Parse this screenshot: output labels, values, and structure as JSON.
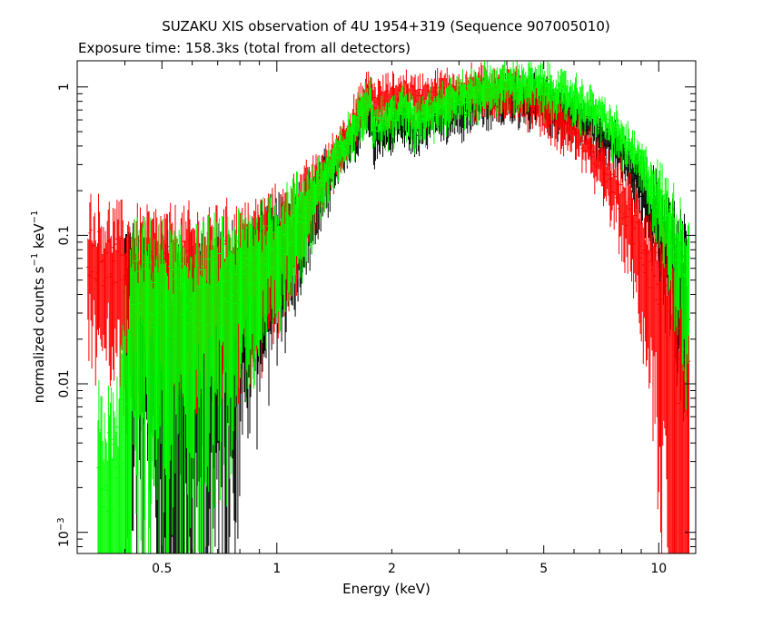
{
  "chart_data": {
    "type": "scatter",
    "title": "SUZAKU XIS observation of 4U 1954+319 (Sequence 907005010)",
    "subtitle": "Exposure time: 158.3ks (total from all detectors)",
    "xlabel": "Energy (keV)",
    "ylabel": {
      "text_a": "normalized counts s",
      "sup_a": "−1",
      "text_b": " keV",
      "sup_b": "−1"
    },
    "xscale": "log",
    "yscale": "log",
    "xlim": [
      0.3,
      12.5
    ],
    "ylim": [
      0.00072,
      1.5
    ],
    "x_ticks": [
      {
        "value": 0.5,
        "label": "0.5"
      },
      {
        "value": 1,
        "label": "1"
      },
      {
        "value": 2,
        "label": "2"
      },
      {
        "value": 5,
        "label": "5"
      },
      {
        "value": 10,
        "label": "10"
      }
    ],
    "y_ticks": [
      {
        "value": 0.001,
        "label": "10",
        "sup": "−3"
      },
      {
        "value": 0.01,
        "label": "0.01",
        "sup": ""
      },
      {
        "value": 0.1,
        "label": "0.1",
        "sup": ""
      },
      {
        "value": 1,
        "label": "1",
        "sup": ""
      }
    ],
    "series": [
      {
        "color": "#000000",
        "points": [
          [
            0.4,
            0.045
          ],
          [
            0.45,
            0.035
          ],
          [
            0.5,
            0.03
          ],
          [
            0.55,
            0.028
          ],
          [
            0.6,
            0.03
          ],
          [
            0.7,
            0.035
          ],
          [
            0.8,
            0.045
          ],
          [
            0.9,
            0.06
          ],
          [
            1.0,
            0.075
          ],
          [
            1.1,
            0.1
          ],
          [
            1.2,
            0.14
          ],
          [
            1.3,
            0.2
          ],
          [
            1.4,
            0.28
          ],
          [
            1.5,
            0.38
          ],
          [
            1.6,
            0.5
          ],
          [
            1.7,
            0.7
          ],
          [
            1.75,
            0.75
          ],
          [
            1.8,
            0.45
          ],
          [
            1.9,
            0.5
          ],
          [
            2.0,
            0.55
          ],
          [
            2.1,
            0.62
          ],
          [
            2.2,
            0.6
          ],
          [
            2.3,
            0.5
          ],
          [
            2.5,
            0.6
          ],
          [
            3.0,
            0.72
          ],
          [
            3.5,
            0.82
          ],
          [
            4.0,
            0.85
          ],
          [
            4.5,
            0.85
          ],
          [
            5.0,
            0.8
          ],
          [
            6.0,
            0.65
          ],
          [
            7.0,
            0.5
          ],
          [
            8.0,
            0.35
          ],
          [
            9.0,
            0.22
          ],
          [
            10.0,
            0.13
          ],
          [
            11.0,
            0.07
          ],
          [
            12.0,
            0.04
          ]
        ]
      },
      {
        "color": "#ff0000",
        "points": [
          [
            0.32,
            0.08
          ],
          [
            0.35,
            0.07
          ],
          [
            0.4,
            0.06
          ],
          [
            0.45,
            0.06
          ],
          [
            0.5,
            0.058
          ],
          [
            0.55,
            0.056
          ],
          [
            0.6,
            0.058
          ],
          [
            0.7,
            0.06
          ],
          [
            0.8,
            0.065
          ],
          [
            0.9,
            0.075
          ],
          [
            1.0,
            0.09
          ],
          [
            1.1,
            0.12
          ],
          [
            1.2,
            0.17
          ],
          [
            1.3,
            0.24
          ],
          [
            1.4,
            0.33
          ],
          [
            1.5,
            0.45
          ],
          [
            1.6,
            0.6
          ],
          [
            1.7,
            0.8
          ],
          [
            1.75,
            0.95
          ],
          [
            1.8,
            0.78
          ],
          [
            1.9,
            0.82
          ],
          [
            2.0,
            0.85
          ],
          [
            2.1,
            0.9
          ],
          [
            2.2,
            0.92
          ],
          [
            2.3,
            0.85
          ],
          [
            2.5,
            0.88
          ],
          [
            3.0,
            0.95
          ],
          [
            3.5,
            0.98
          ],
          [
            4.0,
            0.95
          ],
          [
            4.5,
            0.88
          ],
          [
            5.0,
            0.75
          ],
          [
            6.0,
            0.5
          ],
          [
            7.0,
            0.3
          ],
          [
            8.0,
            0.17
          ],
          [
            9.0,
            0.09
          ],
          [
            10.0,
            0.045
          ],
          [
            11.0,
            0.018
          ],
          [
            12.0,
            0.008
          ]
        ]
      },
      {
        "color": "#00ff00",
        "points": [
          [
            0.34,
            0.0025
          ],
          [
            0.38,
            0.0025
          ],
          [
            0.42,
            0.04
          ],
          [
            0.45,
            0.04
          ],
          [
            0.5,
            0.038
          ],
          [
            0.55,
            0.036
          ],
          [
            0.6,
            0.038
          ],
          [
            0.7,
            0.045
          ],
          [
            0.8,
            0.055
          ],
          [
            0.9,
            0.07
          ],
          [
            1.0,
            0.09
          ],
          [
            1.1,
            0.12
          ],
          [
            1.2,
            0.16
          ],
          [
            1.3,
            0.22
          ],
          [
            1.4,
            0.3
          ],
          [
            1.5,
            0.4
          ],
          [
            1.6,
            0.55
          ],
          [
            1.7,
            0.8
          ],
          [
            1.75,
            0.88
          ],
          [
            1.8,
            0.55
          ],
          [
            1.9,
            0.58
          ],
          [
            2.0,
            0.63
          ],
          [
            2.1,
            0.7
          ],
          [
            2.2,
            0.7
          ],
          [
            2.3,
            0.6
          ],
          [
            2.5,
            0.7
          ],
          [
            3.0,
            0.85
          ],
          [
            3.5,
            0.98
          ],
          [
            4.0,
            1.05
          ],
          [
            4.5,
            1.05
          ],
          [
            5.0,
            1.0
          ],
          [
            6.0,
            0.85
          ],
          [
            7.0,
            0.65
          ],
          [
            8.0,
            0.45
          ],
          [
            9.0,
            0.3
          ],
          [
            10.0,
            0.18
          ],
          [
            11.0,
            0.1
          ],
          [
            12.0,
            0.06
          ]
        ]
      }
    ]
  }
}
